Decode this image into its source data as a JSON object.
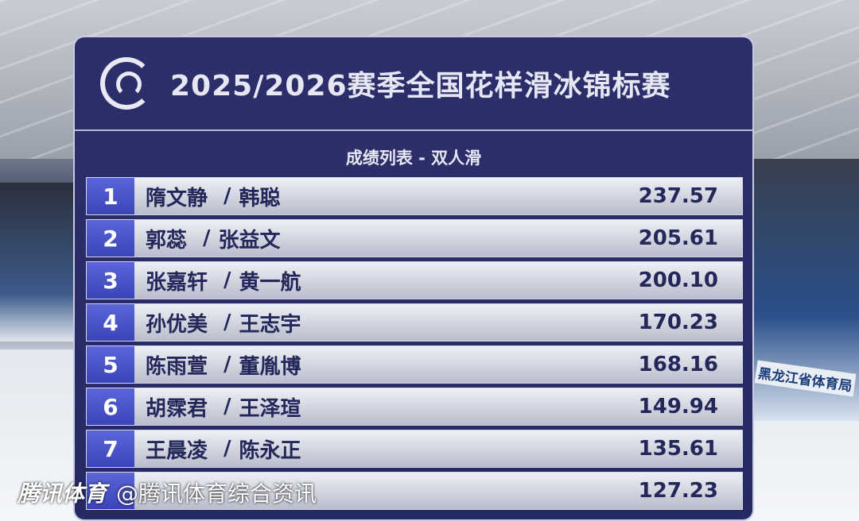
{
  "header": {
    "title": "2025/2026赛季全国花样滑冰锦标赛",
    "subtitle": "成绩列表 - 双人滑"
  },
  "results": [
    {
      "rank": "1",
      "skater1": "隋文静",
      "skater2": "韩聪",
      "score": "237.57"
    },
    {
      "rank": "2",
      "skater1": "郭蕊",
      "skater2": "张益文",
      "score": "205.61"
    },
    {
      "rank": "3",
      "skater1": "张嘉轩",
      "skater2": "黄一航",
      "score": "200.10"
    },
    {
      "rank": "4",
      "skater1": "孙优美",
      "skater2": "王志宇",
      "score": "170.23"
    },
    {
      "rank": "5",
      "skater1": "陈雨萱",
      "skater2": "董胤博",
      "score": "168.16"
    },
    {
      "rank": "6",
      "skater1": "胡霂君",
      "skater2": "王泽瑄",
      "score": "149.94"
    },
    {
      "rank": "7",
      "skater1": "王晨凌",
      "skater2": "陈永正",
      "score": "135.61"
    },
    {
      "rank": "",
      "skater1": "",
      "skater2": "",
      "score": "127.23"
    }
  ],
  "watermark": {
    "brand": "腾讯体育",
    "handle": "@腾讯体育综合资讯"
  },
  "venue_banner": "黑龙江省体育局",
  "colors": {
    "board": "#262a63",
    "rank_bg": "#4a53c8",
    "text": "#23275a"
  }
}
